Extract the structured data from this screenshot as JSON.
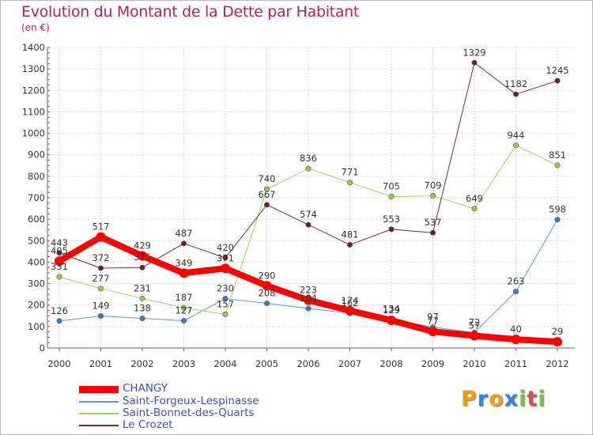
{
  "header": {
    "title": "Evolution du Montant de la Dette par Habitant",
    "subtitle": "(en €)"
  },
  "logo": {
    "letters": [
      "P",
      "r",
      "o",
      "x",
      "i",
      "t",
      "i"
    ],
    "colors": [
      "#f39c12",
      "#2e86de",
      "#f39c12",
      "#2e86de",
      "#7cc242",
      "#e74c3c",
      "#7cc242"
    ]
  },
  "chart_data": {
    "type": "line",
    "title": "Evolution du Montant de la Dette par Habitant",
    "subtitle": "(en €)",
    "xlabel": "",
    "ylabel": "",
    "x": [
      "2000",
      "2001",
      "2002",
      "2003",
      "2004",
      "2005",
      "2006",
      "2007",
      "2008",
      "2009",
      "2010",
      "2011",
      "2012"
    ],
    "ylim": [
      0,
      1400
    ],
    "yticks": [
      0,
      100,
      200,
      300,
      400,
      500,
      600,
      700,
      800,
      900,
      1000,
      1100,
      1200,
      1300,
      1400
    ],
    "grid": true,
    "legend_position": "bottom-left",
    "series": [
      {
        "name": "Saint-Forgeux-Lespinasse",
        "color": "#5b9bd5",
        "marker": "#3a7fc4",
        "width": 1,
        "values": [
          126,
          149,
          138,
          127,
          230,
          208,
          184,
          162,
          134,
          97,
          72,
          263,
          598
        ],
        "labels": [
          "126",
          "149",
          "138",
          "127",
          "230",
          "208",
          "184",
          "162",
          "134",
          "97",
          "72",
          "263",
          "598"
        ]
      },
      {
        "name": "Saint-Bonnet-des-Quarts",
        "color": "#9ad65a",
        "marker": "#8fcf4a",
        "width": 1,
        "values": [
          331,
          277,
          231,
          187,
          157,
          740,
          836,
          771,
          705,
          709,
          649,
          944,
          851
        ],
        "labels": [
          "331",
          "277",
          "231",
          "187",
          "157",
          "740",
          "836",
          "771",
          "705",
          "709",
          "649",
          "944",
          "851"
        ]
      },
      {
        "name": "Le Crozet",
        "color": "#7a2a2a",
        "marker": "#6b1f1f",
        "width": 1,
        "values": [
          443,
          372,
          375,
          487,
          420,
          667,
          574,
          481,
          553,
          537,
          1329,
          1182,
          1245
        ],
        "labels": [
          "443",
          "372",
          "375",
          "487",
          "420",
          "667",
          "574",
          "481",
          "553",
          "537",
          "1329",
          "1182",
          "1245"
        ]
      },
      {
        "name": "CHANGY",
        "color": "#ff0000",
        "marker": "#ff0000",
        "width": 8,
        "values": [
          405,
          517,
          429,
          349,
          371,
          290,
          223,
          174,
          129,
          77,
          57,
          40,
          29
        ],
        "labels": [
          "405",
          "517",
          "429",
          "349",
          "371",
          "290",
          "223",
          "174",
          "129",
          "77",
          "57",
          "40",
          "29"
        ]
      }
    ]
  },
  "legend": {
    "items": [
      {
        "label": "CHANGY",
        "color": "#ff0000",
        "thick": true
      },
      {
        "label": "Saint-Forgeux-Lespinasse",
        "color": "#5b9bd5",
        "thick": false
      },
      {
        "label": "Saint-Bonnet-des-Quarts",
        "color": "#9ad65a",
        "thick": false
      },
      {
        "label": "Le Crozet",
        "color": "#7a2a2a",
        "thick": false
      }
    ]
  }
}
